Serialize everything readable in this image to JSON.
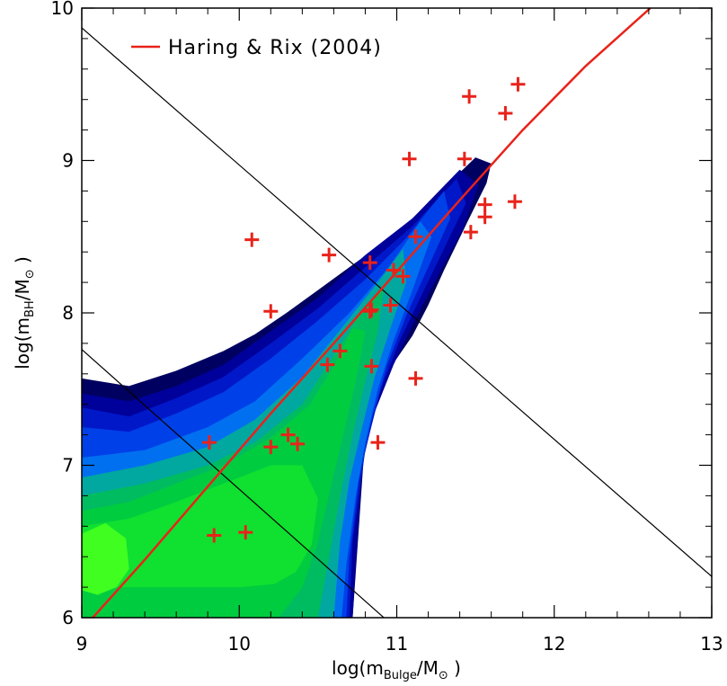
{
  "chart_data": {
    "type": "scatter",
    "title": "",
    "xlabel": {
      "prefix": "log(m",
      "sub": "Bulge",
      "suffix": "/M",
      "sun": "⊙",
      "close": " )"
    },
    "ylabel": {
      "prefix": "log(m",
      "sub": "BH",
      "suffix": "/M",
      "sun": "⊙",
      "close": " )"
    },
    "xlim": [
      9,
      13
    ],
    "ylim": [
      6,
      10
    ],
    "xticks": [
      9,
      10,
      11,
      12,
      13
    ],
    "yticks": [
      6,
      7,
      8,
      9,
      10
    ],
    "xtick_labels": [
      "9",
      "10",
      "11",
      "12",
      "13"
    ],
    "ytick_labels": [
      "6",
      "7",
      "8",
      "9",
      "10"
    ],
    "legend": {
      "position": "top-left",
      "entries": [
        {
          "label": "Haring & Rix (2004)",
          "color": "#e8231a"
        }
      ]
    },
    "colors": {
      "fit": "#e8231a",
      "points": "#e8231a",
      "reference_lines": "#000000",
      "density_levels": [
        "#00002a",
        "#000060",
        "#00009a",
        "#0018c8",
        "#0040e8",
        "#0070f0",
        "#00a8a0",
        "#00bc60",
        "#00cc40",
        "#10e030",
        "#40ff20"
      ]
    },
    "series": [
      {
        "name": "Haring & Rix (2004)",
        "kind": "line",
        "x": [
          9.0,
          9.4,
          9.8,
          10.2,
          10.6,
          11.0,
          11.4,
          11.8,
          12.2,
          12.61
        ],
        "y": [
          5.92,
          6.38,
          6.86,
          7.34,
          7.8,
          8.27,
          8.74,
          9.2,
          9.62,
          10.0
        ]
      },
      {
        "name": "",
        "kind": "points",
        "marker": "plus",
        "x": [
          9.81,
          9.84,
          10.04,
          10.08,
          10.2,
          10.2,
          10.31,
          10.37,
          10.56,
          10.57,
          10.64,
          10.83,
          10.83,
          10.84,
          10.84,
          10.88,
          10.96,
          10.98,
          11.04,
          11.08,
          11.12,
          11.12,
          11.43,
          11.46,
          11.47,
          11.56,
          11.56,
          11.69,
          11.75,
          11.77
        ],
        "y": [
          7.15,
          6.54,
          6.56,
          8.48,
          8.01,
          7.12,
          7.2,
          7.14,
          7.66,
          8.38,
          7.75,
          8.33,
          8.01,
          7.65,
          8.02,
          7.15,
          8.05,
          8.28,
          8.24,
          9.01,
          8.5,
          7.57,
          9.01,
          9.42,
          8.53,
          8.71,
          8.63,
          9.31,
          8.73,
          9.5
        ]
      },
      {
        "name": "",
        "kind": "line",
        "x": [
          9.0,
          13.0
        ],
        "y": [
          9.87,
          6.27
        ]
      },
      {
        "name": "",
        "kind": "line",
        "x": [
          9.0,
          10.94
        ],
        "y": [
          7.76,
          5.98
        ]
      }
    ],
    "density_contours": [
      {
        "level": 1,
        "x": [
          9.0,
          9.3,
          9.6,
          9.9,
          10.1,
          10.3,
          10.5,
          10.7,
          10.9,
          11.1,
          11.3,
          11.5,
          11.6,
          11.57,
          11.45,
          11.3,
          11.2,
          11.1,
          11.0,
          10.9,
          10.8,
          10.72,
          9.0
        ],
        "y": [
          7.57,
          7.52,
          7.62,
          7.75,
          7.86,
          8.0,
          8.15,
          8.3,
          8.45,
          8.62,
          8.82,
          9.02,
          8.98,
          8.85,
          8.6,
          8.28,
          8.05,
          7.85,
          7.7,
          7.55,
          7.2,
          6.0,
          6.0
        ]
      },
      {
        "level": 2,
        "x": [
          9.0,
          9.3,
          9.6,
          9.9,
          10.2,
          10.5,
          10.8,
          11.1,
          11.4,
          11.52,
          11.42,
          11.25,
          11.1,
          10.98,
          10.86,
          10.78,
          10.72,
          9.0
        ],
        "y": [
          7.47,
          7.42,
          7.52,
          7.66,
          7.88,
          8.1,
          8.38,
          8.62,
          8.94,
          8.84,
          8.55,
          8.22,
          7.92,
          7.66,
          7.35,
          7.0,
          6.0,
          6.0
        ]
      },
      {
        "level": 3,
        "x": [
          9.0,
          9.3,
          9.6,
          9.9,
          10.2,
          10.5,
          10.8,
          11.1,
          11.38,
          11.44,
          11.3,
          11.15,
          11.02,
          10.9,
          10.8,
          10.72,
          10.7,
          9.0
        ],
        "y": [
          7.38,
          7.32,
          7.44,
          7.58,
          7.8,
          8.03,
          8.3,
          8.57,
          8.88,
          8.72,
          8.42,
          8.1,
          7.82,
          7.5,
          7.1,
          6.5,
          6.0,
          6.0
        ]
      },
      {
        "level": 4,
        "x": [
          9.0,
          9.3,
          9.6,
          9.9,
          10.2,
          10.5,
          10.8,
          11.05,
          11.3,
          11.34,
          11.2,
          11.06,
          10.94,
          10.84,
          10.76,
          10.7,
          10.68,
          9.0
        ],
        "y": [
          7.25,
          7.22,
          7.34,
          7.48,
          7.7,
          7.95,
          8.22,
          8.48,
          8.8,
          8.62,
          8.3,
          7.98,
          7.66,
          7.3,
          6.9,
          6.4,
          6.0,
          6.0
        ]
      },
      {
        "level": 5,
        "x": [
          9.0,
          9.4,
          9.8,
          10.1,
          10.4,
          10.7,
          10.95,
          11.15,
          11.22,
          11.1,
          10.98,
          10.88,
          10.8,
          10.74,
          10.68,
          10.65,
          9.0
        ],
        "y": [
          7.05,
          7.1,
          7.25,
          7.42,
          7.7,
          8.0,
          8.3,
          8.6,
          8.5,
          8.15,
          7.82,
          7.5,
          7.15,
          6.8,
          6.35,
          6.0,
          6.0
        ]
      },
      {
        "level": 6,
        "x": [
          9.0,
          9.4,
          9.8,
          10.1,
          10.4,
          10.65,
          10.88,
          11.04,
          11.06,
          10.96,
          10.86,
          10.78,
          10.7,
          10.64,
          10.6,
          9.0
        ],
        "y": [
          6.92,
          7.0,
          7.12,
          7.3,
          7.58,
          7.9,
          8.2,
          8.42,
          8.2,
          7.9,
          7.58,
          7.25,
          6.9,
          6.5,
          6.0,
          6.0
        ]
      },
      {
        "level": 7,
        "x": [
          9.0,
          9.4,
          9.8,
          10.1,
          10.4,
          10.6,
          10.8,
          10.92,
          10.88,
          10.8,
          10.72,
          10.65,
          10.58,
          10.5,
          9.0
        ],
        "y": [
          6.8,
          6.88,
          7.0,
          7.15,
          7.4,
          7.72,
          8.05,
          8.18,
          7.88,
          7.55,
          7.2,
          6.85,
          6.45,
          6.0,
          6.0
        ]
      },
      {
        "level": 8,
        "x": [
          9.0,
          9.3,
          9.6,
          9.9,
          10.2,
          10.45,
          10.6,
          10.72,
          10.8,
          10.74,
          10.66,
          10.58,
          10.5,
          10.4,
          10.25,
          9.0
        ],
        "y": [
          6.7,
          6.76,
          6.88,
          7.0,
          7.18,
          7.4,
          7.65,
          7.9,
          7.88,
          7.55,
          7.2,
          6.85,
          6.5,
          6.2,
          6.0,
          6.0
        ]
      },
      {
        "level": 9,
        "x": [
          9.0,
          9.3,
          9.6,
          9.9,
          10.2,
          10.4,
          10.5,
          10.46,
          10.36,
          10.22,
          10.0,
          9.7,
          9.4,
          9.0
        ],
        "y": [
          6.6,
          6.65,
          6.76,
          6.88,
          7.0,
          7.0,
          6.78,
          6.48,
          6.3,
          6.22,
          6.2,
          6.2,
          6.2,
          6.2
        ]
      },
      {
        "level": 10,
        "x": [
          9.0,
          9.15,
          9.28,
          9.3,
          9.22,
          9.1,
          9.0
        ],
        "y": [
          6.55,
          6.62,
          6.52,
          6.32,
          6.2,
          6.15,
          6.18
        ]
      }
    ]
  }
}
